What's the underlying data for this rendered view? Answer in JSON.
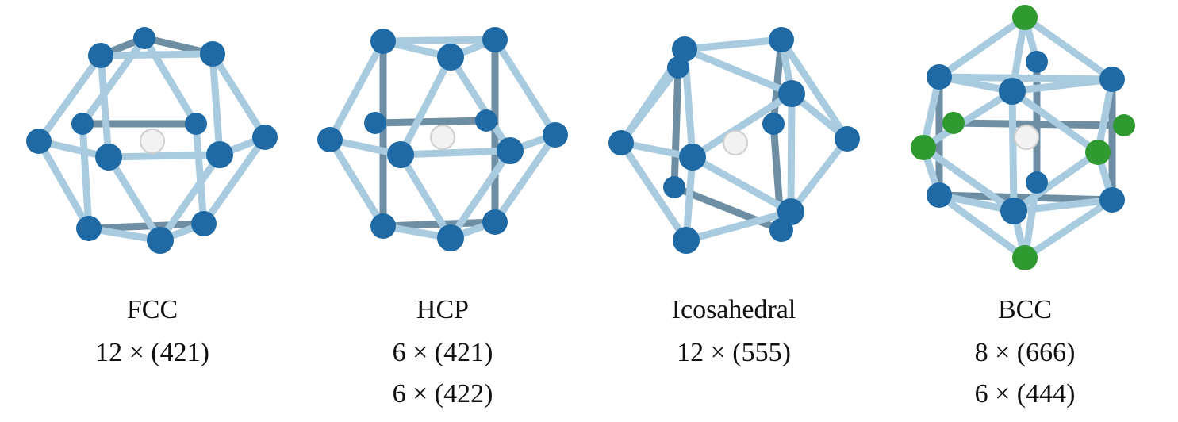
{
  "figure": {
    "panels": [
      {
        "name": "FCC",
        "signatures": [
          "12 × (421)"
        ]
      },
      {
        "name": "HCP",
        "signatures": [
          "6 × (421)",
          "6 × (422)"
        ]
      },
      {
        "name": "Icosahedral",
        "signatures": [
          "12 × (555)"
        ]
      },
      {
        "name": "BCC",
        "signatures": [
          "8 × (666)",
          "6 × (444)"
        ]
      }
    ],
    "colors": {
      "neighbor_atom": "#1f6aa5",
      "second_shell_atom": "#2f9a2f",
      "central_atom": "#f2f2f2",
      "bond": "#a9cbe0",
      "back_bond": "#6d8ea3"
    }
  }
}
